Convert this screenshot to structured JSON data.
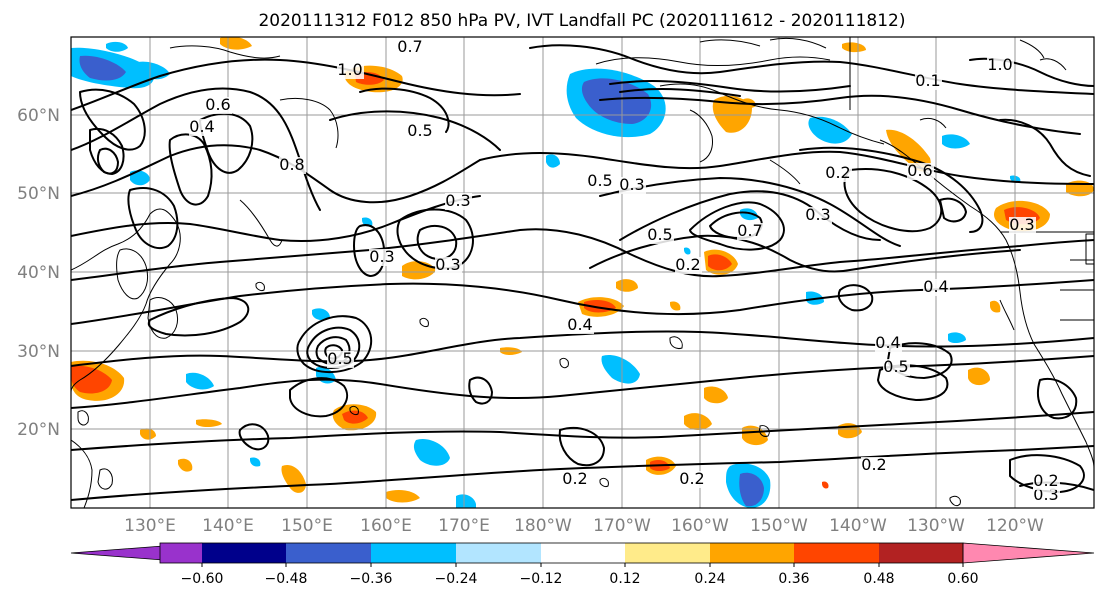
{
  "title": "2020111312 F012 850 hPa PV, IVT Landfall PC (2020111612 - 2020111812)",
  "lat_labels": [
    "60°N",
    "50°N",
    "40°N",
    "30°N",
    "20°N"
  ],
  "lon_labels": [
    "130°E",
    "140°E",
    "150°E",
    "160°E",
    "170°E",
    "180°W",
    "170°W",
    "160°W",
    "150°W",
    "140°W",
    "130°W",
    "120°W"
  ],
  "colorbar": {
    "colors": [
      "#9932cc",
      "#00008b",
      "#3a5fcd",
      "#00bfff",
      "#b2e5ff",
      "#ffffff",
      "#ffeb8a",
      "#ffa500",
      "#ff4500",
      "#b22222",
      "#ff88b0"
    ],
    "tick_labels": [
      "−0.60",
      "−0.48",
      "−0.36",
      "−0.24",
      "−0.12",
      "0.12",
      "0.24",
      "0.36",
      "0.48",
      "0.60"
    ]
  },
  "contour_labels": [
    "0.7",
    "1.0",
    "0.6",
    "0.4",
    "0.5",
    "0.8",
    "0.3",
    "0.2",
    "0.3",
    "0.3",
    "0.5",
    "0.7",
    "0.3",
    "0.2",
    "0.4",
    "0.6",
    "0.5",
    "0.3",
    "0.4",
    "0.5",
    "0.4",
    "0.5",
    "0.2",
    "0.2",
    "0.2",
    "0.3",
    "0.2",
    "0.3",
    "0.1",
    "1.0"
  ]
}
